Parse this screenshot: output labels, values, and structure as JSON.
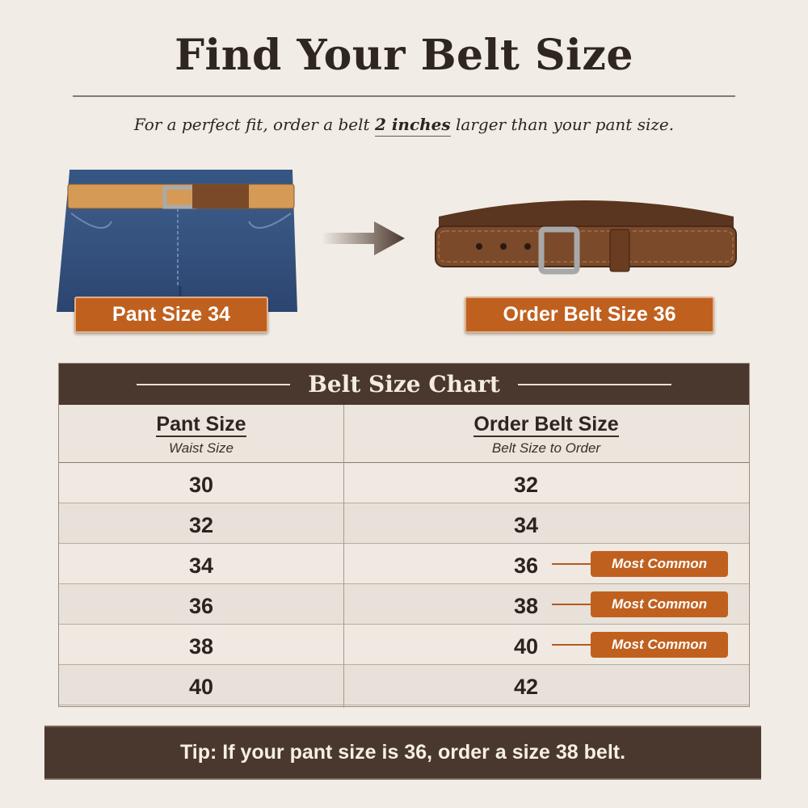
{
  "title": "Find Your Belt Size",
  "subtitle": {
    "before": "For a perfect fit, order a belt ",
    "emphasis": "2 inches",
    "after": " larger than your pant size."
  },
  "illustrations": {
    "pant_label": "Pant Size 34",
    "belt_label": "Order Belt Size 36"
  },
  "table": {
    "title": "Belt Size Chart",
    "columns": [
      {
        "header": "Pant Size",
        "subheader": "Waist Size"
      },
      {
        "header": "Order Belt Size",
        "subheader": "Belt Size to Order"
      }
    ],
    "rows": [
      {
        "pant": "30",
        "belt": "32",
        "tag": null
      },
      {
        "pant": "32",
        "belt": "34",
        "tag": null
      },
      {
        "pant": "34",
        "belt": "36",
        "tag": "Most Common"
      },
      {
        "pant": "36",
        "belt": "38",
        "tag": "Most Common"
      },
      {
        "pant": "38",
        "belt": "40",
        "tag": "Most Common"
      },
      {
        "pant": "40",
        "belt": "42",
        "tag": null
      }
    ]
  },
  "tip": "Tip: If your pant size is 36, order a size 38 belt.",
  "colors": {
    "accent": "#c0601f",
    "dark_brown": "#4a372d",
    "background": "#f1ece5"
  }
}
